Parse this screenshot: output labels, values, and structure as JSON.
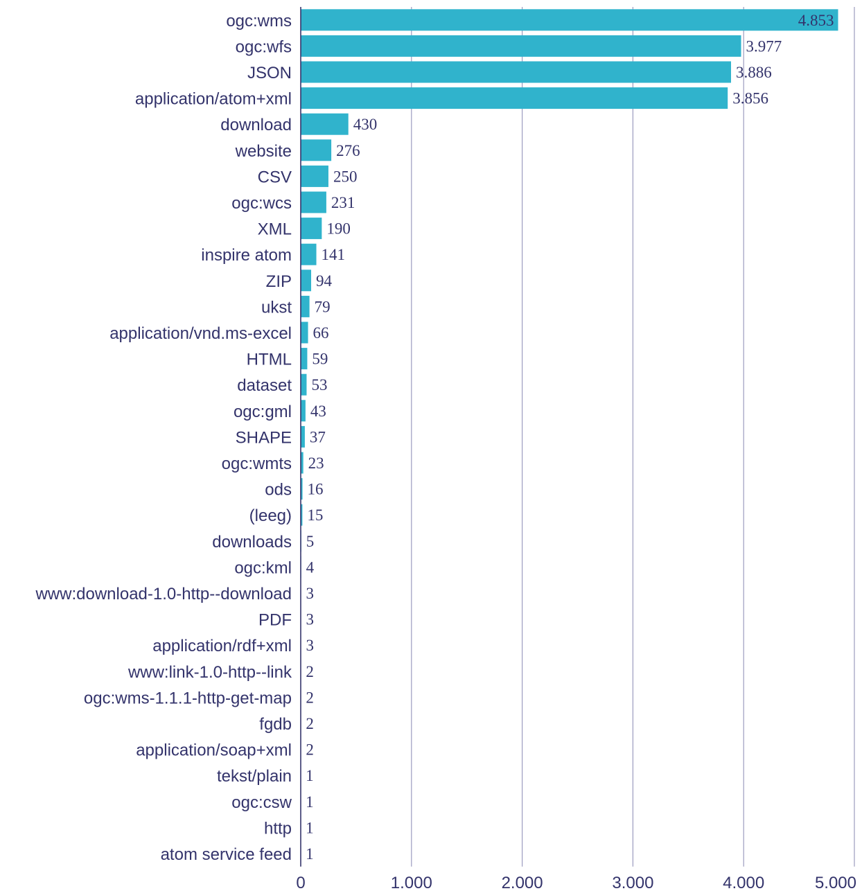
{
  "chart_data": {
    "type": "bar",
    "orientation": "horizontal",
    "categories": [
      "ogc:wms",
      "ogc:wfs",
      "JSON",
      "application/atom+xml",
      "download",
      "website",
      "CSV",
      "ogc:wcs",
      "XML",
      "inspire atom",
      "ZIP",
      "ukst",
      "application/vnd.ms-excel",
      "HTML",
      "dataset",
      "ogc:gml",
      "SHAPE",
      "ogc:wmts",
      "ods",
      "(leeg)",
      "downloads",
      "ogc:kml",
      "www:download-1.0-http--download",
      "PDF",
      "application/rdf+xml",
      "www:link-1.0-http--link",
      "ogc:wms-1.1.1-http-get-map",
      "fgdb",
      "application/soap+xml",
      "tekst/plain",
      "ogc:csw",
      "http",
      "atom service feed"
    ],
    "values": [
      4853,
      3977,
      3886,
      3856,
      430,
      276,
      250,
      231,
      190,
      141,
      94,
      79,
      66,
      59,
      53,
      43,
      37,
      23,
      16,
      15,
      5,
      4,
      3,
      3,
      3,
      2,
      2,
      2,
      2,
      1,
      1,
      1,
      1
    ],
    "value_labels": [
      "4.853",
      "3.977",
      "3.886",
      "3.856",
      "430",
      "276",
      "250",
      "231",
      "190",
      "141",
      "94",
      "79",
      "66",
      "59",
      "53",
      "43",
      "37",
      "23",
      "16",
      "15",
      "5",
      "4",
      "3",
      "3",
      "3",
      "2",
      "2",
      "2",
      "2",
      "1",
      "1",
      "1",
      "1"
    ],
    "xlim": [
      0,
      5000
    ],
    "x_ticks": [
      0,
      1000,
      2000,
      3000,
      4000,
      5000
    ],
    "x_tick_labels": [
      "0",
      "1.000",
      "2.000",
      "3.000",
      "4.000",
      "5.000"
    ],
    "title": "",
    "xlabel": "",
    "ylabel": "",
    "grid": "vertical",
    "legend": "none",
    "colors": {
      "bar": "#30b3cc",
      "text": "#33336b",
      "grid": "#9b9bbf",
      "axis": "#33336b"
    }
  }
}
